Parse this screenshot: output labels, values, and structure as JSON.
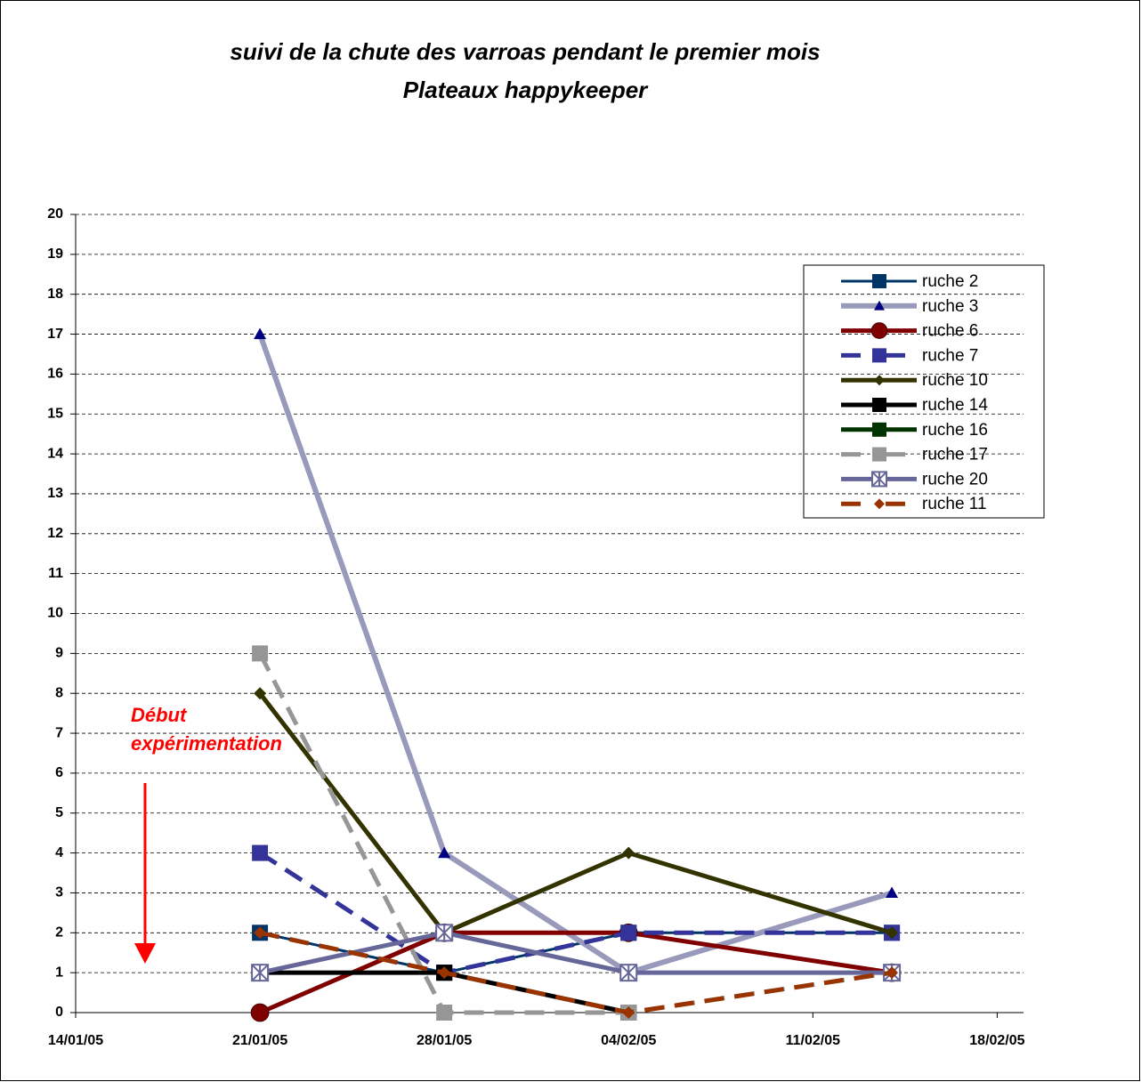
{
  "chart_data": {
    "type": "line",
    "title": "suivi de la chute des varroas pendant le premier mois",
    "subtitle": "Plateaux happykeeper",
    "annotation": [
      "Début",
      "expérimentation"
    ],
    "annotation_color": "#ff0000",
    "x": [
      "21/01/05",
      "28/01/05",
      "04/02/05",
      "14/02/05"
    ],
    "xlim": [
      "14/01/05",
      "19/02/05"
    ],
    "xticks": [
      "14/01/05",
      "21/01/05",
      "28/01/05",
      "04/02/05",
      "11/02/05",
      "18/02/05"
    ],
    "ylim": [
      0,
      20
    ],
    "yticks": [
      0,
      1,
      2,
      3,
      4,
      5,
      6,
      7,
      8,
      9,
      10,
      11,
      12,
      13,
      14,
      15,
      16,
      17,
      18,
      19,
      20
    ],
    "grid": true,
    "legend": "upper right",
    "series": [
      {
        "name": "ruche 2",
        "color": "#003366",
        "marker": "square",
        "style": "solid",
        "values": [
          2,
          1,
          2,
          2
        ]
      },
      {
        "name": "ruche 3",
        "color": "#9999bb",
        "marker_color": "#000080",
        "marker": "triangle",
        "style": "dotted",
        "values": [
          17,
          4,
          1,
          3
        ]
      },
      {
        "name": "ruche 6",
        "color": "#800000",
        "marker": "circle",
        "style": "solid",
        "values": [
          0,
          2,
          2,
          1
        ]
      },
      {
        "name": "ruche 7",
        "color": "#333399",
        "marker": "square",
        "style": "dashed",
        "values": [
          4,
          1,
          2,
          2
        ]
      },
      {
        "name": "ruche 10",
        "color": "#333300",
        "marker": "diamond",
        "style": "solid",
        "values": [
          8,
          2,
          4,
          2
        ]
      },
      {
        "name": "ruche 14",
        "color": "#000000",
        "marker": "square",
        "style": "solid",
        "values": [
          1,
          1,
          0,
          null
        ]
      },
      {
        "name": "ruche 16",
        "color": "#003300",
        "marker": "square",
        "style": "solid",
        "values": [
          null,
          null,
          null,
          null
        ]
      },
      {
        "name": "ruche 17",
        "color": "#969696",
        "marker": "square",
        "style": "dashed",
        "values": [
          9,
          0,
          0,
          1
        ]
      },
      {
        "name": "ruche 20",
        "color": "#666699",
        "marker": "star",
        "style": "solid",
        "values": [
          1,
          2,
          1,
          1
        ]
      },
      {
        "name": "ruche 11",
        "color": "#993300",
        "marker": "diamond",
        "style": "dashed",
        "values": [
          2,
          1,
          0,
          1
        ]
      }
    ]
  }
}
